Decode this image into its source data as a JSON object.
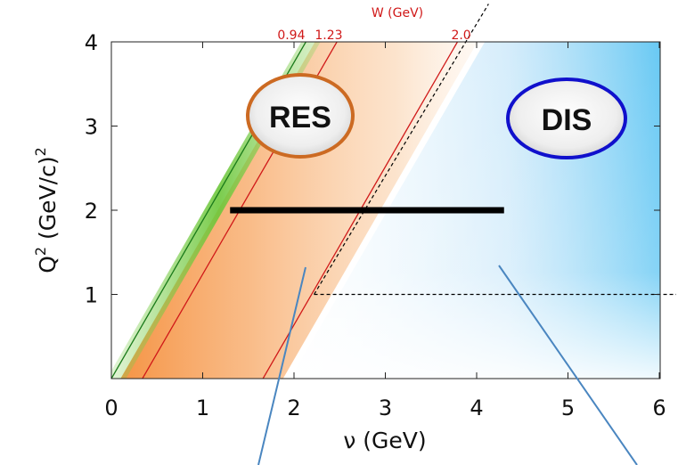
{
  "chart_data": {
    "type": "line",
    "xlabel": "ν (GeV)",
    "ylabel": "Q² (GeV/c)²",
    "xlim": [
      0,
      6
    ],
    "ylim": [
      0,
      4
    ],
    "x_ticks": [
      "0",
      "1",
      "2",
      "3",
      "4",
      "5",
      "6"
    ],
    "y_ticks": [
      "1",
      "2",
      "3",
      "4"
    ],
    "top_axis_label": "W (GeV)",
    "w_lines": [
      {
        "w_label": "0.94",
        "nu_at_q2_0": 0.0,
        "nu_at_q2_4": 2.13,
        "color": "#1a7a1a"
      },
      {
        "w_label": "1.23",
        "nu_at_q2_0": 0.34,
        "nu_at_q2_4": 2.47,
        "color": "#d01818"
      },
      {
        "w_label": "2.0",
        "nu_at_q2_0": 1.66,
        "nu_at_q2_4": 3.79,
        "color": "#d01818"
      }
    ],
    "dashed_boundaries": [
      {
        "points": [
          [
            2.22,
            1.0
          ],
          [
            3.97,
            4.0
          ]
        ]
      },
      {
        "points": [
          [
            2.22,
            1.0
          ],
          [
            6.1,
            1.0
          ]
        ]
      }
    ],
    "kinematic_line": {
      "nu_range": [
        1.3,
        4.3
      ],
      "q2": 2.0,
      "color": "#000000"
    },
    "regions": [
      {
        "label": "RES",
        "border_color": "#cc6a22",
        "fill": "#f5a055"
      },
      {
        "label": "DIS",
        "border_color": "#1010cc",
        "fill": "#5bbcf0"
      }
    ],
    "callout_color": "#4a86c0",
    "grid": false
  }
}
